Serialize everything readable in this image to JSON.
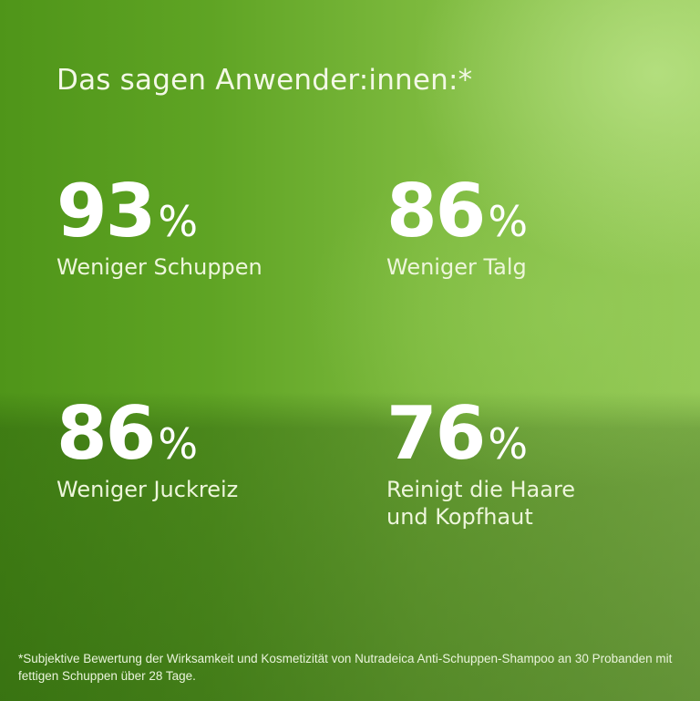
{
  "headline": "Das sagen Anwender:innen:*",
  "colors": {
    "background_dark": "#4f9519",
    "background_light": "#95c957",
    "text": "#ffffff"
  },
  "stats": [
    {
      "value": "93",
      "unit": "%",
      "label": "Weniger Schuppen"
    },
    {
      "value": "86",
      "unit": "%",
      "label": "Weniger Talg"
    },
    {
      "value": "86",
      "unit": "%",
      "label": "Weniger Juckreiz"
    },
    {
      "value": "76",
      "unit": "%",
      "label": "Reinigt die Haare\nund Kopfhaut"
    }
  ],
  "footnote": "*Subjektive Bewertung der Wirksamkeit und Kosmetizität von Nutradeica Anti-Schuppen-Shampoo an 30 Probanden mit fettigen Schuppen über 28 Tage."
}
